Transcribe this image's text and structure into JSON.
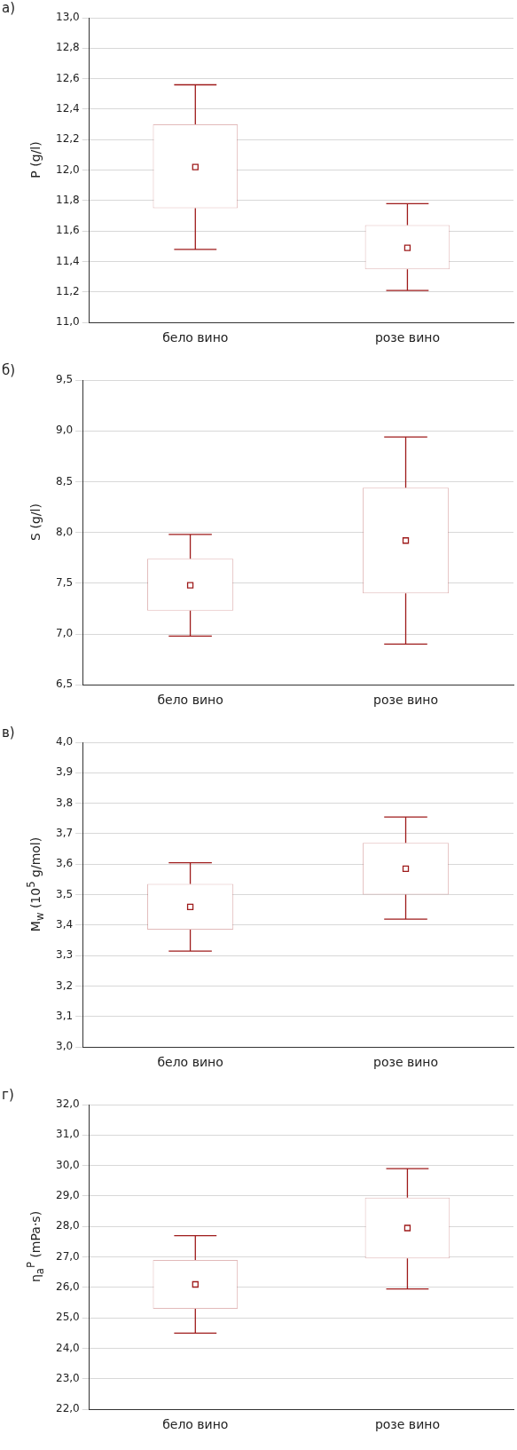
{
  "chart_data": [
    {
      "type": "box",
      "title": "а)",
      "ylabel": "P (g/l)",
      "categories": [
        "бело вино",
        "розе вино"
      ],
      "grid": "y",
      "legend": false,
      "ylim": [
        11,
        13
      ],
      "yticks": [
        {
          "value": 11,
          "label": "11,0"
        },
        {
          "value": 11.2,
          "label": "11,2"
        },
        {
          "value": 11.4,
          "label": "11,4"
        },
        {
          "value": 11.6,
          "label": "11,6"
        },
        {
          "value": 11.8,
          "label": "11,8"
        },
        {
          "value": 12,
          "label": "12,0"
        },
        {
          "value": 12.2,
          "label": "12,2"
        },
        {
          "value": 12.4,
          "label": "12,4"
        },
        {
          "value": 12.6,
          "label": "12,6"
        },
        {
          "value": 12.8,
          "label": "12,8"
        },
        {
          "value": 13,
          "label": "13,0"
        }
      ],
      "series": [
        {
          "color": "#9e1b1b",
          "boxes": [
            {
              "low": 11.48,
              "q1": 11.75,
              "median": 12.02,
              "q3": 12.3,
              "high": 12.56
            },
            {
              "low": 11.21,
              "q1": 11.35,
              "median": 11.49,
              "q3": 11.64,
              "high": 11.78
            }
          ]
        }
      ]
    },
    {
      "type": "box",
      "title": "б)",
      "ylabel": "S (g/l)",
      "categories": [
        "бело вино",
        "розе вино"
      ],
      "grid": "y",
      "legend": false,
      "ylim": [
        6.5,
        9.5
      ],
      "yticks": [
        {
          "value": 6.5,
          "label": "6,5"
        },
        {
          "value": 7,
          "label": "7,0"
        },
        {
          "value": 7.5,
          "label": "7,5"
        },
        {
          "value": 8,
          "label": "8,0"
        },
        {
          "value": 8.5,
          "label": "8,5"
        },
        {
          "value": 9,
          "label": "9,0"
        },
        {
          "value": 9.5,
          "label": "9,5"
        }
      ],
      "series": [
        {
          "color": "#9e1b1b",
          "boxes": [
            {
              "low": 6.98,
              "q1": 7.23,
              "median": 7.48,
              "q3": 7.74,
              "high": 7.98
            },
            {
              "low": 6.9,
              "q1": 7.4,
              "median": 7.92,
              "q3": 8.44,
              "high": 8.94
            }
          ]
        }
      ]
    },
    {
      "type": "box",
      "title": "в)",
      "ylabel": "M$_{w}$ (10$^{5}$ g/mol)",
      "categories": [
        "бело вино",
        "розе вино"
      ],
      "grid": "y",
      "legend": false,
      "ylim": [
        3,
        4
      ],
      "yticks": [
        {
          "value": 3,
          "label": "3,0"
        },
        {
          "value": 3.1,
          "label": "3,1"
        },
        {
          "value": 3.2,
          "label": "3,2"
        },
        {
          "value": 3.3,
          "label": "3,3"
        },
        {
          "value": 3.4,
          "label": "3,4"
        },
        {
          "value": 3.5,
          "label": "3,5"
        },
        {
          "value": 3.6,
          "label": "3,6"
        },
        {
          "value": 3.7,
          "label": "3,7"
        },
        {
          "value": 3.8,
          "label": "3,8"
        },
        {
          "value": 3.9,
          "label": "3,9"
        },
        {
          "value": 4,
          "label": "4,0"
        }
      ],
      "series": [
        {
          "color": "#9e1b1b",
          "boxes": [
            {
              "low": 3.315,
              "q1": 3.385,
              "median": 3.46,
              "q3": 3.535,
              "high": 3.605
            },
            {
              "low": 3.42,
              "q1": 3.5,
              "median": 3.585,
              "q3": 3.67,
              "high": 3.755
            }
          ]
        }
      ]
    },
    {
      "type": "box",
      "title": "г)",
      "ylabel": "η$_{a}$$^{P}$ (mPa·s)",
      "categories": [
        "бело вино",
        "розе вино"
      ],
      "grid": "y",
      "legend": false,
      "ylim": [
        22,
        32
      ],
      "yticks": [
        {
          "value": 22,
          "label": "22,0"
        },
        {
          "value": 23,
          "label": "23,0"
        },
        {
          "value": 24,
          "label": "24,0"
        },
        {
          "value": 25,
          "label": "25,0"
        },
        {
          "value": 26,
          "label": "26,0"
        },
        {
          "value": 27,
          "label": "27,0"
        },
        {
          "value": 28,
          "label": "28,0"
        },
        {
          "value": 29,
          "label": "29,0"
        },
        {
          "value": 30,
          "label": "30,0"
        },
        {
          "value": 31,
          "label": "31,0"
        },
        {
          "value": 32,
          "label": "32,0"
        }
      ],
      "series": [
        {
          "color": "#9e1b1b",
          "boxes": [
            {
              "low": 24.5,
              "q1": 25.3,
              "median": 26.1,
              "q3": 26.9,
              "high": 27.7
            },
            {
              "low": 25.95,
              "q1": 26.95,
              "median": 27.95,
              "q3": 28.95,
              "high": 29.9
            }
          ]
        }
      ]
    }
  ]
}
